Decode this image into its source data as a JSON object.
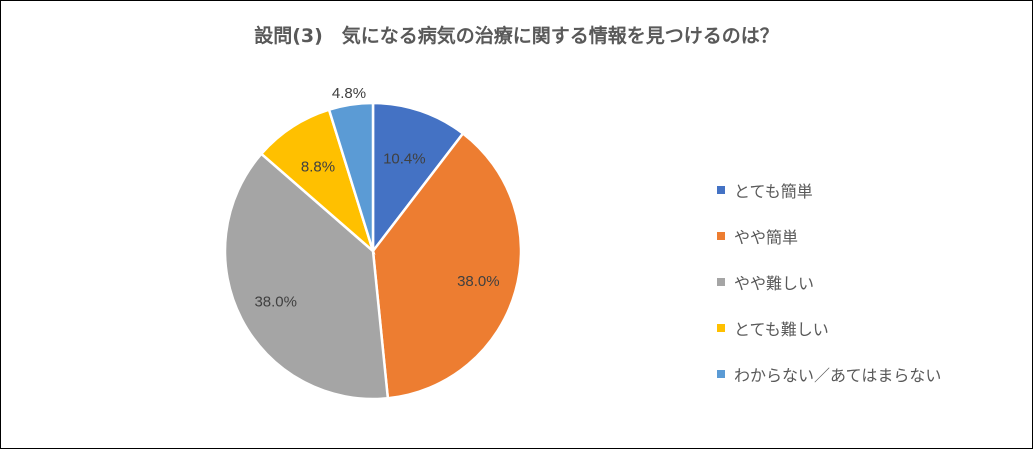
{
  "chart_data": {
    "type": "pie",
    "title": "設問(3)　気になる病気の治療に関する情報を見つけるのは？",
    "categories": [
      "とても簡単",
      "やや簡単",
      "やや難しい",
      "とても難しい",
      "わからない／あてはまらない"
    ],
    "values": [
      10.4,
      38.0,
      38.0,
      8.8,
      4.8
    ],
    "data_labels": [
      "10.4%",
      "38.0%",
      "38.0%",
      "8.8%",
      "4.8%"
    ],
    "colors": [
      "#4472C4",
      "#ED7D31",
      "#A5A5A5",
      "#FFC000",
      "#5B9BD5"
    ],
    "legend_position": "right",
    "start_angle": "12 o'clock",
    "direction": "clockwise"
  }
}
